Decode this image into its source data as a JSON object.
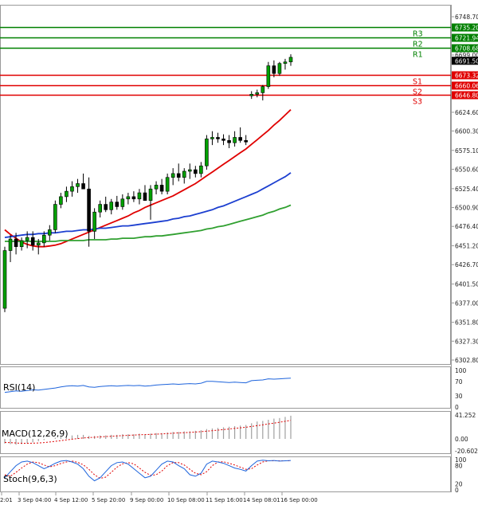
{
  "chart_data": [
    {
      "type": "candlestick",
      "panel": "price",
      "y_ticks": [
        "6748.70",
        "6699.00",
        "6673.60",
        "6649.00",
        "6624.60",
        "6600.30",
        "6575.10",
        "6550.60",
        "6525.40",
        "6500.90",
        "6476.40",
        "6451.20",
        "6426.70",
        "6401.50",
        "6377.00",
        "6351.80",
        "6327.30",
        "6302.80"
      ],
      "ylim": [
        6302.8,
        6748.7
      ],
      "x_ticks": [
        "2:01",
        "3 Sep 04:00",
        "4 Sep 12:00",
        "5 Sep 20:00",
        "9 Sep 00:00",
        "10 Sep 08:00",
        "11 Sep 16:00",
        "14 Sep 08:01",
        "16 Sep 00:00"
      ],
      "levels": [
        {
          "name": "R3",
          "value": 6735.2,
          "label": "6735.20",
          "color": "#008000"
        },
        {
          "name": "R2",
          "value": 6721.94,
          "label": "6721.94",
          "color": "#008000"
        },
        {
          "name": "R1",
          "value": 6708.68,
          "label": "6708.68",
          "color": "#008000"
        },
        {
          "name": "S1",
          "value": 6673.32,
          "label": "6673.32",
          "color": "#e00000"
        },
        {
          "name": "S2",
          "value": 6660.06,
          "label": "6660.06",
          "color": "#e00000"
        },
        {
          "name": "S3",
          "value": 6646.8,
          "label": "6646.80",
          "color": "#e00000"
        }
      ],
      "current_price": {
        "value": 6691.5,
        "label": "6691.50"
      },
      "candles": [
        [
          6370,
          6450,
          6365,
          6445
        ],
        [
          6445,
          6465,
          6430,
          6460
        ],
        [
          6460,
          6468,
          6440,
          6450
        ],
        [
          6450,
          6462,
          6445,
          6458
        ],
        [
          6458,
          6470,
          6448,
          6462
        ],
        [
          6462,
          6470,
          6445,
          6452
        ],
        [
          6452,
          6460,
          6440,
          6455
        ],
        [
          6455,
          6470,
          6450,
          6465
        ],
        [
          6465,
          6478,
          6458,
          6472
        ],
        [
          6472,
          6510,
          6468,
          6505
        ],
        [
          6505,
          6520,
          6500,
          6515
        ],
        [
          6515,
          6528,
          6508,
          6522
        ],
        [
          6522,
          6535,
          6515,
          6528
        ],
        [
          6528,
          6538,
          6520,
          6532
        ],
        [
          6532,
          6545,
          6525,
          6525
        ],
        [
          6525,
          6540,
          6450,
          6470
        ],
        [
          6470,
          6500,
          6460,
          6495
        ],
        [
          6495,
          6510,
          6488,
          6505
        ],
        [
          6505,
          6515,
          6495,
          6498
        ],
        [
          6498,
          6512,
          6492,
          6508
        ],
        [
          6508,
          6516,
          6498,
          6502
        ],
        [
          6502,
          6518,
          6498,
          6512
        ],
        [
          6512,
          6520,
          6505,
          6515
        ],
        [
          6515,
          6522,
          6508,
          6512
        ],
        [
          6512,
          6525,
          6505,
          6520
        ],
        [
          6520,
          6530,
          6512,
          6510
        ],
        [
          6510,
          6530,
          6485,
          6525
        ],
        [
          6525,
          6535,
          6518,
          6530
        ],
        [
          6530,
          6538,
          6518,
          6522
        ],
        [
          6522,
          6545,
          6518,
          6540
        ],
        [
          6540,
          6552,
          6530,
          6545
        ],
        [
          6545,
          6558,
          6535,
          6540
        ],
        [
          6540,
          6552,
          6532,
          6548
        ],
        [
          6548,
          6558,
          6538,
          6550
        ],
        [
          6550,
          6555,
          6540,
          6545
        ],
        [
          6545,
          6560,
          6540,
          6555
        ],
        [
          6555,
          6595,
          6550,
          6590
        ],
        [
          6590,
          6600,
          6582,
          6592
        ],
        [
          6592,
          6598,
          6585,
          6590
        ],
        [
          6590,
          6596,
          6582,
          6588
        ],
        [
          6588,
          6595,
          6578,
          6585
        ],
        [
          6585,
          6600,
          6580,
          6592
        ],
        [
          6592,
          6605,
          6585,
          6588
        ],
        [
          6588,
          6595,
          6582,
          6586
        ],
        [
          6646,
          6652,
          6642,
          6648
        ],
        [
          6648,
          6654,
          6644,
          6650
        ],
        [
          6650,
          6660,
          6640,
          6658
        ],
        [
          6658,
          6690,
          6655,
          6685
        ],
        [
          6685,
          6692,
          6670,
          6675
        ],
        [
          6675,
          6690,
          6672,
          6688
        ],
        [
          6688,
          6694,
          6680,
          6690
        ],
        [
          6690,
          6700,
          6685,
          6696
        ]
      ],
      "moving_averages": [
        {
          "color": "#e00000",
          "values": [
            6472,
            6466,
            6461,
            6456,
            6453,
            6451,
            6450,
            6450,
            6451,
            6452,
            6454,
            6457,
            6460,
            6463,
            6466,
            6469,
            6472,
            6475,
            6478,
            6481,
            6484,
            6487,
            6490,
            6494,
            6497,
            6501,
            6504,
            6507,
            6510,
            6513,
            6516,
            6520,
            6524,
            6528,
            6532,
            6537,
            6542,
            6547,
            6552,
            6557,
            6562,
            6567,
            6572,
            6577,
            6583,
            6589,
            6595,
            6601,
            6608,
            6614,
            6621,
            6628
          ]
        },
        {
          "color": "#1c3fd0",
          "values": [
            6462,
            6463,
            6464,
            6465,
            6466,
            6466,
            6467,
            6467,
            6468,
            6468,
            6469,
            6470,
            6470,
            6471,
            6472,
            6472,
            6473,
            6474,
            6474,
            6475,
            6476,
            6477,
            6477,
            6478,
            6479,
            6480,
            6481,
            6482,
            6483,
            6484,
            6486,
            6487,
            6489,
            6490,
            6492,
            6494,
            6496,
            6498,
            6501,
            6503,
            6506,
            6509,
            6512,
            6515,
            6518,
            6521,
            6525,
            6529,
            6533,
            6537,
            6541,
            6546
          ]
        },
        {
          "color": "#30a030",
          "values": [
            6457,
            6457,
            6457,
            6457,
            6457,
            6457,
            6457,
            6457,
            6457,
            6457,
            6458,
            6458,
            6458,
            6458,
            6458,
            6459,
            6459,
            6459,
            6459,
            6460,
            6460,
            6461,
            6461,
            6461,
            6462,
            6463,
            6463,
            6464,
            6464,
            6465,
            6466,
            6467,
            6468,
            6469,
            6470,
            6471,
            6473,
            6474,
            6476,
            6477,
            6479,
            6481,
            6483,
            6485,
            6487,
            6489,
            6491,
            6494,
            6496,
            6499,
            6501,
            6504
          ]
        }
      ]
    },
    {
      "type": "line",
      "panel": "RSI",
      "title": "RSI(14)",
      "y_ticks": [
        "100",
        "70",
        "30",
        "0"
      ],
      "ylim": [
        0,
        100
      ],
      "color": "#1e64dc",
      "values": [
        40,
        42,
        44,
        43,
        45,
        47,
        46,
        48,
        50,
        52,
        55,
        57,
        58,
        57,
        59,
        55,
        54,
        56,
        57,
        58,
        57,
        58,
        59,
        58,
        59,
        57,
        58,
        60,
        61,
        62,
        63,
        62,
        63,
        64,
        63,
        65,
        70,
        70,
        69,
        68,
        67,
        68,
        67,
        66,
        72,
        73,
        74,
        77,
        76,
        77,
        78,
        79
      ]
    },
    {
      "type": "bar",
      "panel": "MACD",
      "title": "MACD(12,26,9)",
      "y_ticks": [
        "41.252",
        "0.00",
        "-20.602"
      ],
      "ylim": [
        -20.602,
        41.252
      ],
      "bar_color": "#a0a0a0",
      "signal_color": "#e00000",
      "values": [
        -8,
        -9,
        -10,
        -9,
        -8,
        -6,
        -4,
        -2,
        0,
        2,
        4,
        5,
        6,
        7,
        7,
        5,
        5,
        6,
        6,
        7,
        7,
        8,
        8,
        8,
        9,
        8,
        9,
        10,
        10,
        11,
        12,
        12,
        13,
        13,
        14,
        15,
        17,
        18,
        19,
        20,
        21,
        22,
        23,
        24,
        27,
        30,
        31,
        33,
        35,
        36,
        38,
        40
      ],
      "signal": [
        -6,
        -6.5,
        -7,
        -7.5,
        -7.6,
        -7.4,
        -7,
        -6.3,
        -5.4,
        -4.3,
        -3,
        -1.8,
        -0.6,
        0.6,
        1.6,
        2.3,
        2.9,
        3.5,
        4,
        4.6,
        5.1,
        5.7,
        6.2,
        6.6,
        7.1,
        7.4,
        7.8,
        8.3,
        8.7,
        9.2,
        9.8,
        10.3,
        10.8,
        11.3,
        11.9,
        12.5,
        13.3,
        14.2,
        15.2,
        16.1,
        17.1,
        18.1,
        19.1,
        20.1,
        21.4,
        22.9,
        24.2,
        25.8,
        27.3,
        28.8,
        30.4,
        32.1
      ]
    },
    {
      "type": "line",
      "panel": "Stoch",
      "title": "Stoch(9,6,3)",
      "y_ticks": [
        "100",
        "80",
        "20",
        "0"
      ],
      "ylim": [
        0,
        100
      ],
      "colors": {
        "k": "#1e64dc",
        "d": "#e00000"
      },
      "k": [
        40,
        60,
        80,
        92,
        95,
        90,
        80,
        70,
        78,
        88,
        95,
        97,
        92,
        85,
        70,
        45,
        30,
        40,
        60,
        80,
        90,
        92,
        85,
        70,
        55,
        40,
        45,
        65,
        85,
        95,
        92,
        80,
        70,
        50,
        45,
        55,
        85,
        95,
        92,
        88,
        80,
        72,
        68,
        62,
        80,
        95,
        98,
        96,
        97,
        95,
        96,
        97
      ],
      "d": [
        50,
        45,
        58,
        72,
        85,
        92,
        90,
        82,
        76,
        80,
        87,
        92,
        95,
        91,
        83,
        68,
        50,
        38,
        42,
        58,
        75,
        86,
        90,
        86,
        72,
        58,
        48,
        50,
        62,
        80,
        90,
        90,
        82,
        68,
        55,
        50,
        60,
        80,
        92,
        93,
        88,
        82,
        75,
        68,
        70,
        82,
        92,
        96,
        96,
        96,
        96,
        96
      ]
    }
  ]
}
